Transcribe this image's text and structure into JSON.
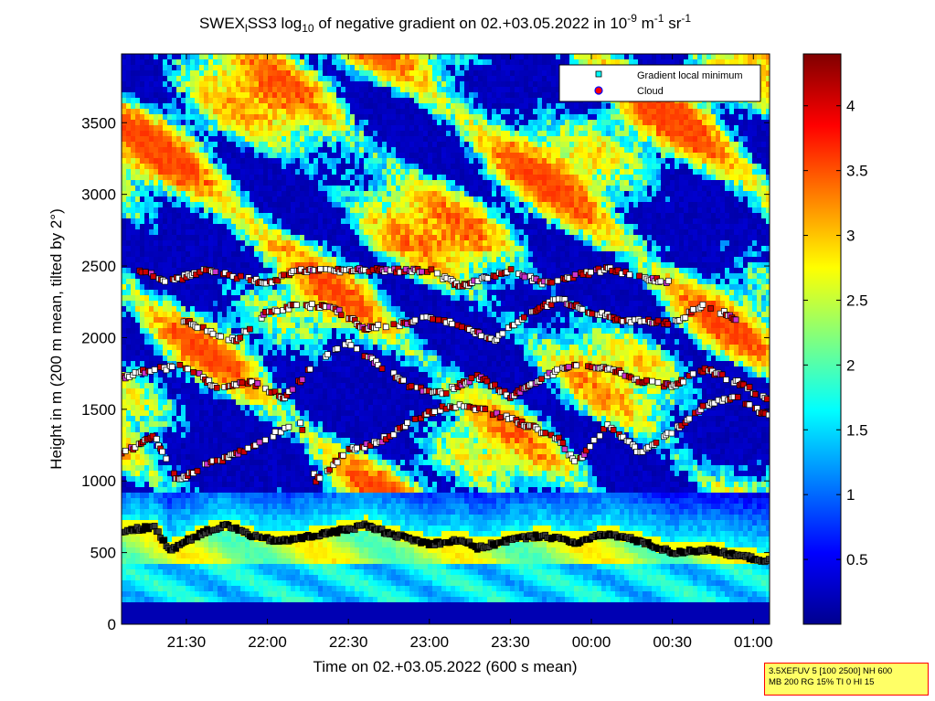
{
  "chart_data": {
    "type": "heatmap",
    "title_parts": [
      "SWEX",
      "l",
      "SS3 log",
      "10",
      " of negative gradient on 02.+03.05.2022 in 10",
      "-9",
      " m",
      "-1",
      " sr",
      "-1"
    ],
    "xlabel": "Time on 02.+03.05.2022 (600 s mean)",
    "ylabel": "Height in m (200 m mean, tilted by 2°)",
    "x_ticks": [
      "21:30",
      "22:00",
      "22:30",
      "23:00",
      "23:30",
      "00:00",
      "00:30",
      "01:00"
    ],
    "x_tick_hours": [
      21.5,
      22.0,
      22.5,
      23.0,
      23.5,
      24.0,
      24.5,
      25.0
    ],
    "xlim_hours": [
      21.1,
      25.1
    ],
    "y_ticks": [
      0,
      500,
      1000,
      1500,
      2000,
      2500,
      3000,
      3500
    ],
    "ylim": [
      0,
      3980
    ],
    "colorbar": {
      "ticks": [
        0.5,
        1,
        1.5,
        2,
        2.5,
        3,
        3.5,
        4
      ],
      "tick_labels": [
        "0.5",
        "1",
        "1.5",
        "2",
        "2.5",
        "3",
        "3.5",
        "4"
      ],
      "range": [
        0,
        4.4
      ],
      "colormap": "jet"
    },
    "legend": {
      "position": "top-right",
      "entries": [
        {
          "label": "Gradient local minimum",
          "marker": "square",
          "color": "#00ffff"
        },
        {
          "label": "Cloud",
          "marker": "circle",
          "color": "#ff0000",
          "edge": "#0000ff"
        }
      ]
    },
    "layer_tracks": [
      {
        "name": "aerosol-layer-top",
        "points": [
          [
            21.1,
            650
          ],
          [
            21.3,
            680
          ],
          [
            21.4,
            520
          ],
          [
            21.6,
            640
          ],
          [
            21.75,
            690
          ],
          [
            21.95,
            600
          ],
          [
            22.1,
            580
          ],
          [
            22.4,
            640
          ],
          [
            22.6,
            690
          ],
          [
            22.8,
            620
          ],
          [
            23.0,
            560
          ],
          [
            23.2,
            590
          ],
          [
            23.3,
            530
          ],
          [
            23.5,
            590
          ],
          [
            23.7,
            620
          ],
          [
            23.9,
            570
          ],
          [
            24.1,
            630
          ],
          [
            24.3,
            580
          ],
          [
            24.5,
            500
          ],
          [
            24.7,
            520
          ],
          [
            24.9,
            480
          ],
          [
            25.1,
            440
          ]
        ]
      },
      {
        "name": "layer-1000",
        "points": [
          [
            21.1,
            1180
          ],
          [
            21.3,
            1320
          ],
          [
            21.45,
            1000
          ],
          [
            21.6,
            1100
          ],
          [
            21.8,
            1180
          ],
          [
            22.0,
            1300
          ],
          [
            22.2,
            1420
          ],
          [
            22.3,
            1000
          ],
          [
            22.5,
            1210
          ],
          [
            22.7,
            1280
          ],
          [
            22.9,
            1420
          ],
          [
            23.05,
            1500
          ],
          [
            23.2,
            1530
          ],
          [
            23.4,
            1470
          ],
          [
            23.6,
            1390
          ],
          [
            23.8,
            1300
          ],
          [
            23.9,
            1120
          ],
          [
            24.1,
            1380
          ],
          [
            24.3,
            1200
          ],
          [
            24.5,
            1340
          ],
          [
            24.7,
            1530
          ],
          [
            24.9,
            1580
          ],
          [
            25.1,
            1450
          ]
        ]
      },
      {
        "name": "layer-1800",
        "points": [
          [
            21.1,
            1720
          ],
          [
            21.3,
            1780
          ],
          [
            21.5,
            1800
          ],
          [
            21.7,
            1640
          ],
          [
            21.9,
            1690
          ],
          [
            22.1,
            1580
          ],
          [
            22.3,
            1820
          ],
          [
            22.5,
            1960
          ],
          [
            22.7,
            1800
          ],
          [
            22.9,
            1650
          ],
          [
            23.1,
            1620
          ],
          [
            23.3,
            1730
          ],
          [
            23.5,
            1590
          ],
          [
            23.7,
            1720
          ],
          [
            23.9,
            1820
          ],
          [
            24.1,
            1790
          ],
          [
            24.3,
            1700
          ],
          [
            24.5,
            1660
          ],
          [
            24.7,
            1780
          ],
          [
            24.9,
            1690
          ],
          [
            25.1,
            1560
          ]
        ]
      },
      {
        "name": "layer-2200",
        "points": [
          [
            21.4,
            2150
          ],
          [
            21.6,
            2070
          ],
          [
            21.8,
            1980
          ],
          [
            22.0,
            2180
          ],
          [
            22.2,
            2230
          ],
          [
            22.4,
            2210
          ],
          [
            22.6,
            2070
          ],
          [
            22.8,
            2090
          ],
          [
            23.0,
            2150
          ],
          [
            23.2,
            2080
          ],
          [
            23.4,
            1980
          ],
          [
            23.6,
            2160
          ],
          [
            23.8,
            2270
          ],
          [
            24.0,
            2180
          ],
          [
            24.2,
            2120
          ],
          [
            24.5,
            2100
          ],
          [
            24.7,
            2230
          ],
          [
            24.9,
            2130
          ]
        ]
      },
      {
        "name": "layer-2450",
        "points": [
          [
            21.2,
            2480
          ],
          [
            21.4,
            2390
          ],
          [
            21.6,
            2470
          ],
          [
            22.0,
            2380
          ],
          [
            22.2,
            2470
          ],
          [
            23.0,
            2470
          ],
          [
            23.2,
            2360
          ],
          [
            23.5,
            2470
          ],
          [
            23.7,
            2380
          ],
          [
            24.1,
            2480
          ],
          [
            24.3,
            2420
          ],
          [
            24.5,
            2390
          ]
        ]
      }
    ]
  },
  "info_box": {
    "line1": "3.5XEFUV 5 [100 2500] NH 600",
    "line2": "MB 200 RG 15% TI 0 HI 15"
  }
}
